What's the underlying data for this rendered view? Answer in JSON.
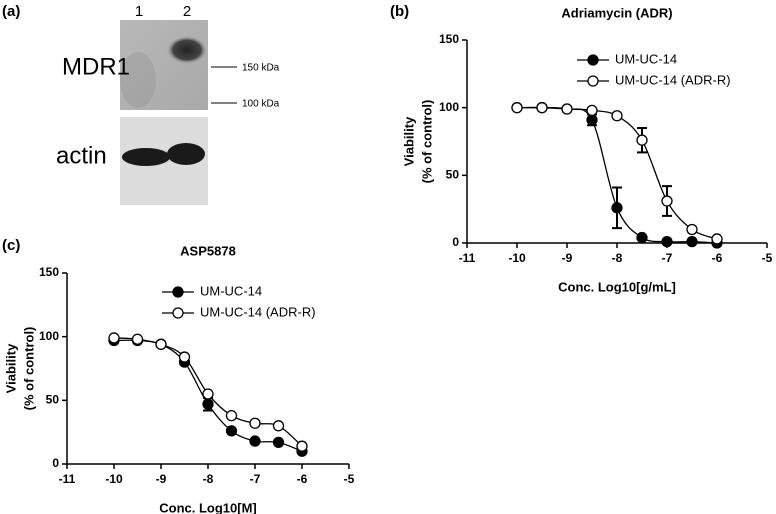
{
  "blot": {
    "panel_label": "(a)",
    "lanes": [
      "1",
      "2"
    ],
    "protein_top": "MDR1",
    "protein_bottom": "actin",
    "markers": [
      "150 kDa",
      "100 kDa"
    ]
  },
  "chart_data": [
    {
      "type": "line",
      "panel_label": "(b)",
      "title": "Adriamycin (ADR)",
      "xlabel": "Conc. Log10[g/mL]",
      "ylabel": [
        "Viability",
        "(% of control)"
      ],
      "x": [
        -10,
        -9.5,
        -9,
        -8.5,
        -8,
        -7.5,
        -7,
        -6.5,
        -6
      ],
      "series": [
        {
          "name": "UM-UC-14",
          "color": "#000000",
          "marker": "filled",
          "values": [
            100,
            100,
            99,
            91,
            26,
            4,
            1,
            1,
            0
          ],
          "errors": [
            null,
            null,
            null,
            4,
            15,
            null,
            null,
            null,
            null
          ]
        },
        {
          "name": "UM-UC-14 (ADR-R)",
          "color": "#000000",
          "marker": "open",
          "values": [
            100,
            100,
            99,
            98,
            94,
            76,
            31,
            10,
            3
          ],
          "errors": [
            null,
            null,
            null,
            null,
            null,
            9,
            11,
            null,
            null
          ]
        }
      ],
      "xlim": [
        -11,
        -5
      ],
      "xticks": [
        -11,
        -10,
        -9,
        -8,
        -7,
        -6,
        -5
      ],
      "ylim": [
        0,
        150
      ],
      "yticks": [
        0,
        50,
        100,
        150
      ],
      "legend": "upper right"
    },
    {
      "type": "line",
      "panel_label": "(c)",
      "title": "ASP5878",
      "xlabel": "Conc. Log10[M]",
      "ylabel": [
        "Viability",
        "(% of control)"
      ],
      "x": [
        -10,
        -9.5,
        -9,
        -8.5,
        -8,
        -7.5,
        -7,
        -6.5,
        -6
      ],
      "series": [
        {
          "name": "UM-UC-14",
          "color": "#000000",
          "marker": "filled",
          "values": [
            97,
            97,
            94,
            80,
            47,
            26,
            18,
            17,
            10
          ],
          "errors": [
            null,
            null,
            null,
            null,
            5,
            null,
            null,
            null,
            null
          ]
        },
        {
          "name": "UM-UC-14 (ADR-R)",
          "color": "#000000",
          "marker": "open",
          "values": [
            99,
            98,
            94,
            84,
            55,
            38,
            32,
            30,
            14
          ],
          "errors": [
            null,
            null,
            null,
            null,
            null,
            null,
            null,
            null,
            null
          ]
        }
      ],
      "xlim": [
        -11,
        -5
      ],
      "xticks": [
        -11,
        -10,
        -9,
        -8,
        -7,
        -6,
        -5
      ],
      "ylim": [
        0,
        150
      ],
      "yticks": [
        0,
        50,
        100,
        150
      ],
      "legend": "upper right"
    }
  ]
}
